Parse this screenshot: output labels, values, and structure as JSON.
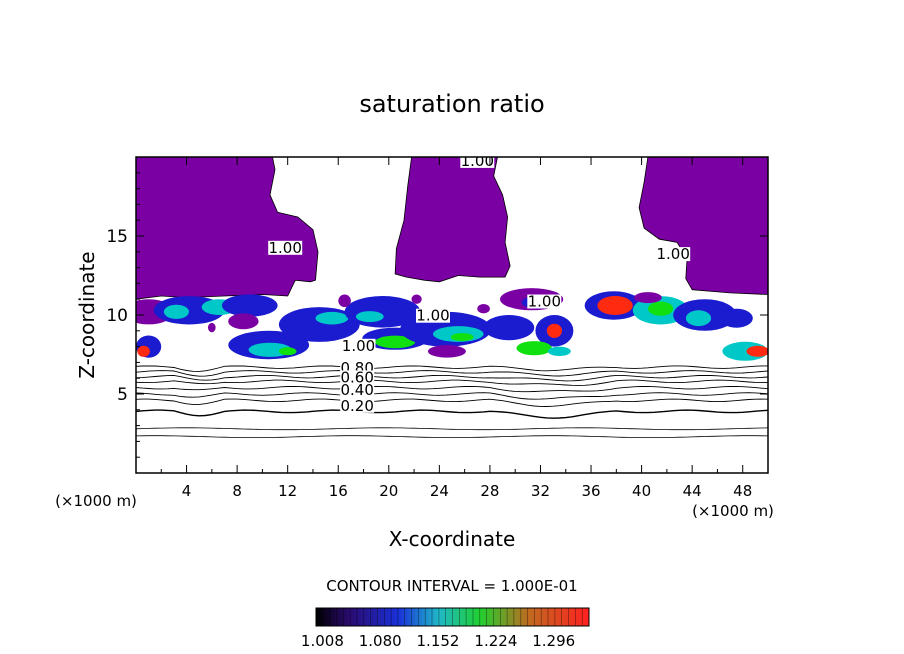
{
  "chart_data": {
    "type": "heatmap",
    "title": "saturation ratio",
    "xlabel": "X-coordinate",
    "ylabel": "Z-coordinate",
    "x_units": "(×1000 m)",
    "y_units": "(×1000 m)",
    "xlim": [
      0,
      50
    ],
    "ylim": [
      0,
      20
    ],
    "x_ticks": [
      4,
      8,
      12,
      16,
      20,
      24,
      28,
      32,
      36,
      40,
      44,
      48
    ],
    "y_ticks": [
      5,
      10,
      15
    ],
    "contour_interval_text": "CONTOUR INTERVAL = 1.000E-01",
    "contour_labels": [
      {
        "text": "1.00",
        "x": 27.0,
        "y": 19.5
      },
      {
        "text": "1.00",
        "x": 11.8,
        "y": 14.0
      },
      {
        "text": "1.00",
        "x": 42.5,
        "y": 13.6
      },
      {
        "text": "1.00",
        "x": 32.3,
        "y": 10.6
      },
      {
        "text": "1.00",
        "x": 23.5,
        "y": 9.7
      },
      {
        "text": "1.00",
        "x": 17.6,
        "y": 7.8
      },
      {
        "text": "0.80",
        "x": 17.5,
        "y": 6.4
      },
      {
        "text": "0.60",
        "x": 17.5,
        "y": 5.8
      },
      {
        "text": "0.40",
        "x": 17.5,
        "y": 5.0
      },
      {
        "text": "0.20",
        "x": 17.5,
        "y": 4.0
      }
    ],
    "contours": [
      {
        "level": 0.2,
        "z": 3.9
      },
      {
        "level": 0.3,
        "z": 4.6
      },
      {
        "level": 0.4,
        "z": 5.0
      },
      {
        "level": 0.5,
        "z": 5.4
      },
      {
        "level": 0.6,
        "z": 5.8
      },
      {
        "level": 0.7,
        "z": 6.1
      },
      {
        "level": 0.8,
        "z": 6.4
      },
      {
        "level": 0.9,
        "z": 6.7
      }
    ],
    "colorbar": {
      "tick_labels": [
        "1.008",
        "1.080",
        "1.152",
        "1.224",
        "1.296"
      ],
      "min": 1.0,
      "max": 1.34
    },
    "supersaturated_regions": [
      {
        "x": [
          0.0,
          11.0
        ],
        "z": [
          11.0,
          20.0
        ]
      },
      {
        "x": [
          20.5,
          29.0
        ],
        "z": [
          11.0,
          20.0
        ]
      },
      {
        "x": [
          40.0,
          50.0
        ],
        "z": [
          11.5,
          20.0
        ]
      }
    ],
    "colors": {
      "fill_min": "#7b00a4",
      "fill_mid_low": "#1b1bd0",
      "fill_mid": "#00c8c8",
      "fill_mid_high": "#10e010",
      "fill_high": "#ff2a10"
    }
  }
}
